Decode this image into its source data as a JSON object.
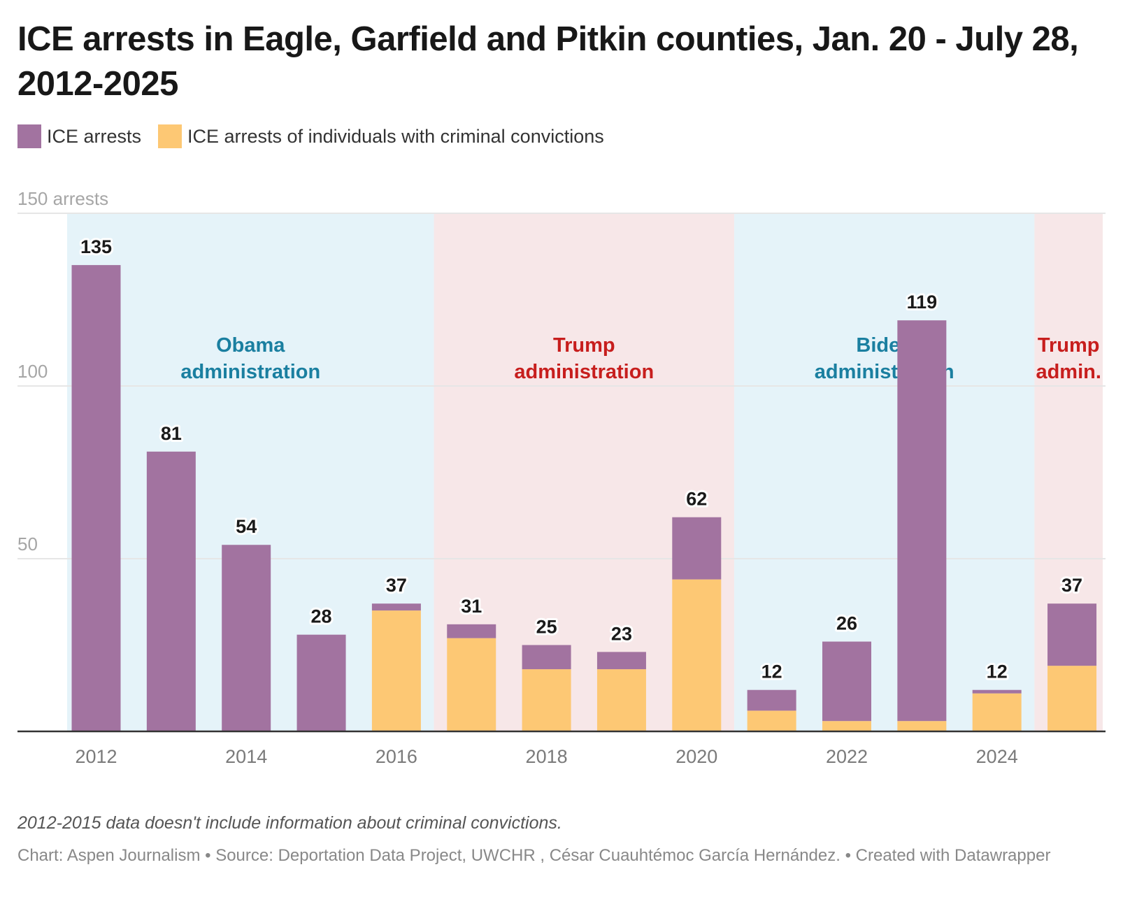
{
  "header": {
    "title": "ICE arrests in Eagle, Garfield and Pitkin counties, Jan. 20 - July 28, 2012-2025"
  },
  "legend": [
    {
      "label": "ICE arrests",
      "color": "#a273a0"
    },
    {
      "label": "ICE arrests of individuals with criminal convictions",
      "color": "#fdc874"
    }
  ],
  "footer": {
    "note": "2012-2015 data doesn't include information about criminal convictions.",
    "source": "Chart: Aspen Journalism • Source: Deportation Data Project, UWCHR , César Cuauhtémoc García Hernández. • Created with Datawrapper"
  },
  "chart_data": {
    "type": "bar",
    "stacked": true,
    "title": "ICE arrests in Eagle, Garfield and Pitkin counties, Jan. 20 - July 28, 2012-2025",
    "xlabel": "",
    "ylabel": "arrests",
    "ylim": [
      0,
      150
    ],
    "y_ticks": [
      {
        "value": 150,
        "label": "150 arrests"
      },
      {
        "value": 100,
        "label": "100"
      },
      {
        "value": 50,
        "label": "50"
      }
    ],
    "grid": true,
    "legend_position": "top-left",
    "categories": [
      2012,
      2013,
      2014,
      2015,
      2016,
      2017,
      2018,
      2019,
      2020,
      2021,
      2022,
      2023,
      2024,
      2025
    ],
    "x_tick_labels": [
      "2012",
      "2014",
      "2016",
      "2018",
      "2020",
      "2022",
      "2024"
    ],
    "totals": [
      135,
      81,
      54,
      28,
      37,
      31,
      25,
      23,
      62,
      12,
      26,
      119,
      12,
      37
    ],
    "series": [
      {
        "name": "ICE arrests of individuals with criminal convictions",
        "color": "#fdc874",
        "values": [
          0,
          0,
          0,
          0,
          35,
          27,
          18,
          18,
          44,
          6,
          3,
          3,
          11,
          19
        ]
      },
      {
        "name": "ICE arrests",
        "color": "#a273a0",
        "values": [
          135,
          81,
          54,
          28,
          2,
          4,
          7,
          5,
          18,
          6,
          23,
          116,
          1,
          18
        ]
      }
    ],
    "annotations": [
      {
        "label_line1": "Obama",
        "label_line2": "administration",
        "from": 2012,
        "to": 2016,
        "band_color": "#e5f3f9",
        "text_color": "#1a7fa0"
      },
      {
        "label_line1": "Trump",
        "label_line2": "administration",
        "from": 2017,
        "to": 2020,
        "band_color": "#f7e7e8",
        "text_color": "#c71e1d"
      },
      {
        "label_line1": "Biden",
        "label_line2": "administration",
        "from": 2021,
        "to": 2024,
        "band_color": "#e5f3f9",
        "text_color": "#1a7fa0"
      },
      {
        "label_line1": "Trump",
        "label_line2": "admin.",
        "from": 2025,
        "to": 2025,
        "band_color": "#f7e7e8",
        "text_color": "#c71e1d"
      }
    ]
  }
}
